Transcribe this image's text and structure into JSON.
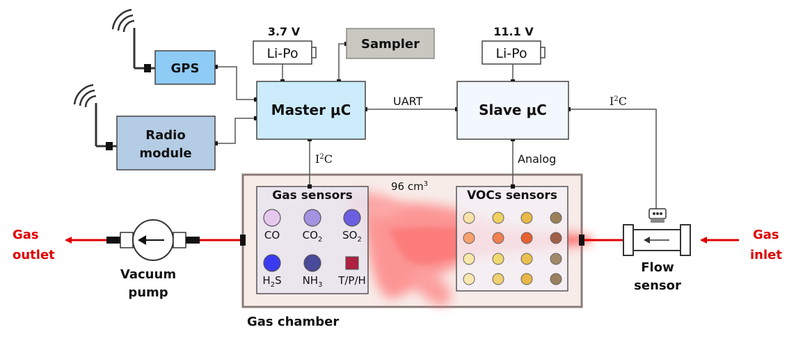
{
  "blocks": {
    "gps": "GPS",
    "radio_line1": "Radio",
    "radio_line2": "module",
    "master": "Master μC",
    "slave": "Slave μC",
    "sampler": "Sampler"
  },
  "batteries": {
    "left_voltage": "3.7 V",
    "left_label": "Li-Po",
    "right_voltage": "11.1 V",
    "right_label": "Li-Po"
  },
  "links": {
    "uart": "UART",
    "i2c_prefix": "I",
    "i2c_sup": "2",
    "i2c_suffix": "C",
    "analog": "Analog"
  },
  "chamber": {
    "volume_prefix": "96 cm",
    "volume_sup": "3",
    "label": "Gas chamber",
    "gas_sensors_title": "Gas sensors",
    "vocs_sensors_title": "VOCs sensors"
  },
  "gas_sensors": [
    {
      "label": "CO",
      "sub": "",
      "color": "#e6c8ee"
    },
    {
      "label": "CO",
      "sub": "2",
      "color": "#a292e0"
    },
    {
      "label": "SO",
      "sub": "2",
      "color": "#6c5ee0"
    },
    {
      "label": "H",
      "sub": "2",
      "suffix": "S",
      "color": "#3a3af0"
    },
    {
      "label": "NH",
      "sub": "3",
      "color": "#4a4a9a"
    },
    {
      "label": "T/P/H",
      "sub": "",
      "color": "#b02040"
    }
  ],
  "voc_colors": [
    [
      "#f7e2a8",
      "#f0d060",
      "#e8b848",
      "#9a8058"
    ],
    [
      "#f8a070",
      "#f08050",
      "#e86030",
      "#a06048"
    ],
    [
      "#f8e8a8",
      "#f0d870",
      "#e8c050",
      "#a08868"
    ],
    [
      "#f8e8b0",
      "#f0d070",
      "#e8b848",
      "#9a8060"
    ]
  ],
  "labels": {
    "gas_outlet_1": "Gas",
    "gas_outlet_2": "outlet",
    "gas_inlet_1": "Gas",
    "gas_inlet_2": "inlet",
    "vacuum_1": "Vacuum",
    "vacuum_2": "pump",
    "flow_1": "Flow",
    "flow_2": "sensor"
  },
  "colors": {
    "gps_fill": "#8ecbf5",
    "radio_fill": "#b4cce4",
    "master_fill": "#ccecfb",
    "slave_fill": "#f3f7fe",
    "sampler_fill": "#c8c8c0",
    "chamber_fill": "#f8ece9",
    "gas_red": "#e00000"
  }
}
